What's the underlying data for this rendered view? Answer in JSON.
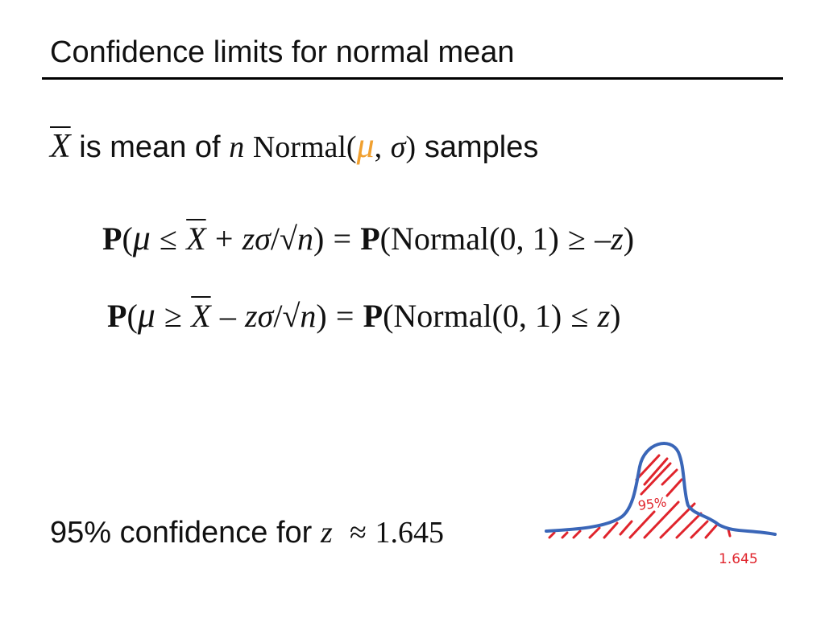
{
  "slide": {
    "title": "Confidence limits for normal mean"
  },
  "line1": {
    "xbar": "X",
    "text1": "is mean of",
    "n": "n",
    "normal": "Normal(",
    "mu": "μ",
    "comma": ",",
    "sigma": "σ",
    "close": ")",
    "text2": "samples"
  },
  "eq1": {
    "P1": "P",
    "open1": "(",
    "mu": "μ",
    "rel": "≤",
    "xbar": "X",
    "op": "+",
    "z": "z",
    "sigma": "σ",
    "slash": "/",
    "sqrt": "√",
    "n": "n",
    "close1": ")",
    "eq": "=",
    "P2": "P",
    "normal": "(Normal(0, 1)",
    "rel2": "≥",
    "neg": "–",
    "z2": "z",
    "close2": ")"
  },
  "eq2": {
    "P1": "P",
    "open1": "(",
    "mu": "μ",
    "rel": "≥",
    "xbar": "X",
    "op": "–",
    "z": "z",
    "sigma": "σ",
    "slash": "/",
    "sqrt": "√",
    "n": "n",
    "close1": ")",
    "eq": "=",
    "P2": "P",
    "normal": "(Normal(0, 1)",
    "rel2": "≤",
    "z2": "z",
    "close2": ")"
  },
  "line4": {
    "text": "95% confidence for",
    "z": "z",
    "approx": "≈",
    "value": "1.645"
  },
  "sketch": {
    "percent_label": "95%",
    "z_label": "1.645",
    "curve_color": "#3a66b8",
    "hatch_color": "#e0242c"
  }
}
